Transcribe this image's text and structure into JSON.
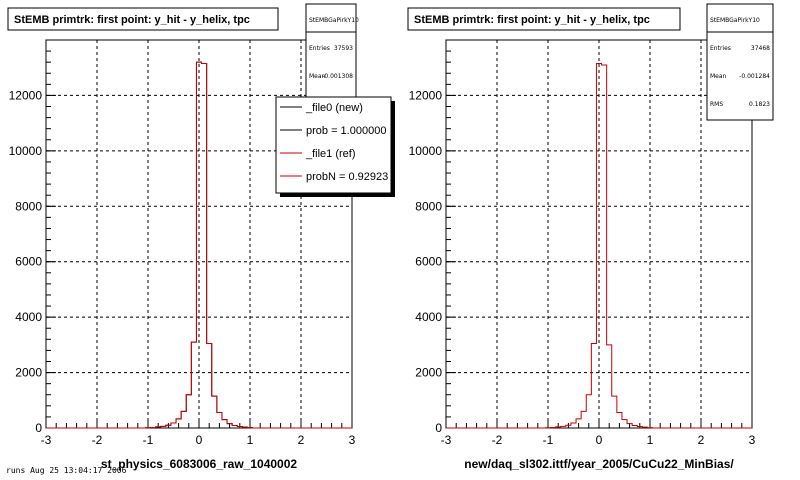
{
  "chart_data": [
    {
      "type": "histogram",
      "title": "StEMB primtrk: first point: y_hit - y_helix, tpc",
      "xlabel": "st_physics_6083006_raw_1040002",
      "ylabel": "",
      "xlim": [
        -3,
        3
      ],
      "ylim": [
        0,
        14000
      ],
      "x_ticks": [
        "-3",
        "-2",
        "-1",
        "0",
        "1",
        "2",
        "3"
      ],
      "y_ticks": [
        "0",
        "2000",
        "4000",
        "6000",
        "8000",
        "10000",
        "12000"
      ],
      "grid": true,
      "x": [
        -1.0,
        -0.9,
        -0.8,
        -0.7,
        -0.6,
        -0.5,
        -0.4,
        -0.3,
        -0.2,
        -0.1,
        0.0,
        0.1,
        0.2,
        0.3,
        0.4,
        0.5,
        0.6,
        0.7,
        0.8,
        0.9,
        1.0
      ],
      "series": [
        {
          "name": "_file0 (new)",
          "color": "#000000",
          "values": [
            10,
            20,
            40,
            60,
            100,
            180,
            330,
            600,
            1200,
            3100,
            13200,
            13150,
            3050,
            1150,
            560,
            300,
            160,
            90,
            55,
            30,
            15
          ]
        },
        {
          "name": "_file1 (ref)",
          "color": "#cc0000",
          "values": [
            10,
            20,
            40,
            60,
            100,
            180,
            330,
            600,
            1200,
            3100,
            13200,
            13150,
            3050,
            1150,
            560,
            300,
            160,
            90,
            55,
            30,
            15
          ]
        }
      ],
      "stats": {
        "title": "StEMBGaPirkY10",
        "rows": [
          {
            "label": "Entries",
            "value": "37593"
          },
          {
            "label": "Mean",
            "value": "-0.001308"
          }
        ]
      },
      "legend": {
        "placement": "top-right",
        "entries": [
          {
            "text": "_file0 (new)",
            "color": "#000000"
          },
          {
            "text": "prob = 1.000000",
            "color": "#000000"
          },
          {
            "text": "_file1 (ref)",
            "color": "#cc0000"
          },
          {
            "text": "probN = 0.92923",
            "color": "#cc0000"
          }
        ]
      }
    },
    {
      "type": "histogram",
      "title": "StEMB primtrk: first point: y_hit - y_helix, tpc",
      "xlabel": "new/daq_sl302.ittf/year_2005/CuCu22_MinBias/",
      "ylabel": "",
      "xlim": [
        -3,
        3
      ],
      "ylim": [
        0,
        14000
      ],
      "x_ticks": [
        "-3",
        "-2",
        "-1",
        "0",
        "1",
        "2",
        "3"
      ],
      "y_ticks": [
        "0",
        "2000",
        "4000",
        "6000",
        "8000",
        "10000",
        "12000"
      ],
      "grid": true,
      "x": [
        -1.0,
        -0.9,
        -0.8,
        -0.7,
        -0.6,
        -0.5,
        -0.4,
        -0.3,
        -0.2,
        -0.1,
        0.0,
        0.1,
        0.2,
        0.3,
        0.4,
        0.5,
        0.6,
        0.7,
        0.8,
        0.9,
        1.0
      ],
      "series": [
        {
          "color": "#cc0000",
          "values": [
            10,
            20,
            40,
            60,
            100,
            180,
            330,
            600,
            1200,
            3050,
            13150,
            13100,
            3000,
            1150,
            560,
            300,
            160,
            90,
            55,
            30,
            15
          ]
        }
      ],
      "stats": {
        "title": "StEMBGaPirkY10",
        "rows": [
          {
            "label": "Entries",
            "value": "37468"
          },
          {
            "label": "Mean",
            "value": "-0.001284"
          },
          {
            "label": "RMS",
            "value": "0.1823"
          }
        ]
      }
    }
  ],
  "footer": "runs Aug 25 13:04:17 2006"
}
